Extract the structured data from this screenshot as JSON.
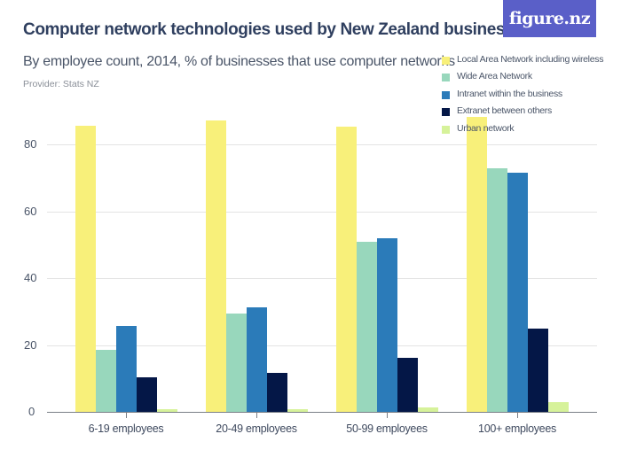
{
  "header": {
    "title": "Computer network technologies used by New Zealand businesses",
    "subtitle": "By employee count, 2014, % of businesses that use computer networks",
    "provider": "Provider: Stats NZ",
    "logo_text": "figure.nz"
  },
  "colors": {
    "lan": "#f8f07a",
    "wan": "#98d7bc",
    "intranet": "#2b7bb9",
    "extranet": "#041747",
    "urban": "#d6f29a",
    "logo_bg": "#5a5fc8"
  },
  "legend": [
    {
      "label": "Local Area Network including wireless",
      "color": "#f8f07a"
    },
    {
      "label": "Wide Area Network",
      "color": "#98d7bc"
    },
    {
      "label": "Intranet within the business",
      "color": "#2b7bb9"
    },
    {
      "label": "Extranet between others",
      "color": "#041747"
    },
    {
      "label": "Urban network",
      "color": "#d6f29a"
    }
  ],
  "axis": {
    "y_ticks": [
      "0",
      "20",
      "40",
      "60",
      "80"
    ],
    "x_labels": [
      "6-19 employees",
      "20-49 employees",
      "50-99 employees",
      "100+ employees"
    ]
  },
  "chart_data": {
    "type": "bar",
    "title": "Computer network technologies used by New Zealand businesses",
    "subtitle": "By employee count, 2014, % of businesses that use computer networks",
    "xlabel": "",
    "ylabel": "",
    "categories": [
      "6-19 employees",
      "20-49 employees",
      "50-99 employees",
      "100+ employees"
    ],
    "series": [
      {
        "name": "Local Area Network including wireless",
        "color": "#f8f07a",
        "values": [
          85.5,
          87.1,
          85.2,
          88.0
        ]
      },
      {
        "name": "Wide Area Network",
        "color": "#98d7bc",
        "values": [
          18.7,
          29.6,
          50.9,
          72.9
        ]
      },
      {
        "name": "Intranet within the business",
        "color": "#2b7bb9",
        "values": [
          25.9,
          31.4,
          52.0,
          71.4
        ]
      },
      {
        "name": "Extranet between others",
        "color": "#041747",
        "values": [
          10.5,
          11.9,
          16.3,
          25.0
        ]
      },
      {
        "name": "Urban network",
        "color": "#d6f29a",
        "values": [
          1.1,
          1.1,
          1.6,
          3.1
        ]
      }
    ],
    "ylim": [
      0,
      90
    ],
    "y_ticks": [
      0,
      20,
      40,
      60,
      80
    ],
    "grid": true,
    "legend_position": "top-right",
    "source": "Provider: Stats NZ"
  }
}
